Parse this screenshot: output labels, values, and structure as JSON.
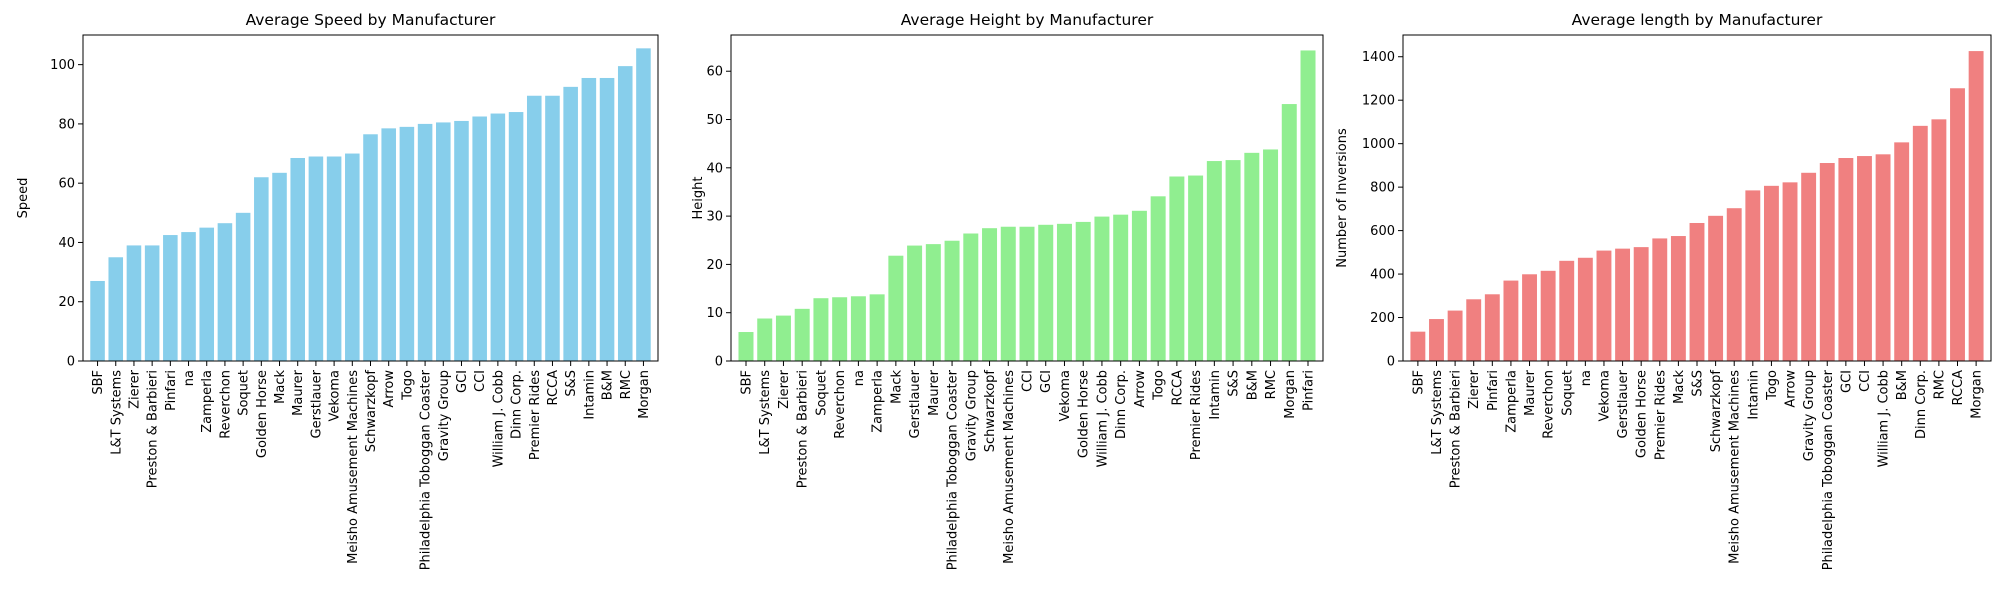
{
  "chart_data": [
    {
      "type": "bar",
      "title": "Average Speed by Manufacturer",
      "xlabel": "",
      "ylabel": "Speed",
      "ylim": [
        0,
        110
      ],
      "yticks": [
        0,
        20,
        40,
        60,
        80,
        100
      ],
      "grid": false,
      "color": "#87ceeb",
      "categories": [
        "SBF",
        "L&T Systems",
        "Zierer",
        "Preston & Barbieri",
        "Pinfari",
        "na",
        "Zamperla",
        "Reverchon",
        "Soquet",
        "Golden Horse",
        "Mack",
        "Maurer",
        "Gerstlauer",
        "Vekoma",
        "Meisho Amusement Machines",
        "Schwarzkopf",
        "Arrow",
        "Togo",
        "Philadelphia Toboggan Coaster",
        "Gravity Group",
        "GCI",
        "CCI",
        "William J. Cobb",
        "Dinn Corp.",
        "Premier Rides",
        "RCCA",
        "S&S",
        "Intamin",
        "B&M",
        "RMC",
        "Morgan"
      ],
      "values": [
        27,
        35,
        39,
        39,
        42.5,
        43.5,
        45,
        46.5,
        50,
        62,
        63.5,
        68.5,
        69,
        69,
        70,
        76.5,
        78.5,
        79,
        80,
        80.5,
        81,
        82.5,
        83.5,
        84,
        89.5,
        89.5,
        92.5,
        95.5,
        95.5,
        99.5,
        105.5
      ]
    },
    {
      "type": "bar",
      "title": "Average Height by Manufacturer",
      "xlabel": "",
      "ylabel": "Height",
      "ylim": [
        0,
        67.5
      ],
      "yticks": [
        0,
        10,
        20,
        30,
        40,
        50,
        60
      ],
      "grid": false,
      "color": "#90ee90",
      "categories": [
        "SBF",
        "L&T Systems",
        "Zierer",
        "Preston & Barbieri",
        "Soquet",
        "Reverchon",
        "na",
        "Zamperla",
        "Mack",
        "Gerstlauer",
        "Maurer",
        "Philadelphia Toboggan Coaster",
        "Gravity Group",
        "Schwarzkopf",
        "Meisho Amusement Machines",
        "CCI",
        "GCI",
        "Vekoma",
        "Golden Horse",
        "William J. Cobb",
        "Dinn Corp.",
        "Arrow",
        "Togo",
        "RCCA",
        "Premier Rides",
        "Intamin",
        "S&S",
        "B&M",
        "RMC",
        "Morgan",
        "Pinfari"
      ],
      "values": [
        6,
        8.8,
        9.4,
        10.8,
        13,
        13.2,
        13.4,
        13.8,
        21.8,
        23.9,
        24.2,
        24.9,
        26.4,
        27.5,
        27.8,
        27.8,
        28.2,
        28.4,
        28.8,
        29.9,
        30.3,
        31.1,
        34.1,
        38.2,
        38.4,
        41.4,
        41.6,
        43.1,
        43.8,
        53.2,
        64.3
      ]
    },
    {
      "type": "bar",
      "title": "Average length by Manufacturer",
      "xlabel": "",
      "ylabel": "Number of Inversions",
      "ylim": [
        0,
        1500
      ],
      "yticks": [
        0,
        200,
        400,
        600,
        800,
        1000,
        1200,
        1400
      ],
      "grid": false,
      "color": "#f08080",
      "categories": [
        "SBF",
        "L&T Systems",
        "Preston & Barbieri",
        "Zierer",
        "Pinfari",
        "Zamperla",
        "Maurer",
        "Reverchon",
        "Soquet",
        "na",
        "Vekoma",
        "Gerstlauer",
        "Golden Horse",
        "Premier Rides",
        "Mack",
        "S&S",
        "Schwarzkopf",
        "Meisho Amusement Machines",
        "Intamin",
        "Togo",
        "Arrow",
        "Gravity Group",
        "Philadelphia Toboggan Coaster",
        "GCI",
        "CCI",
        "William J. Cobb",
        "B&M",
        "Dinn Corp.",
        "RMC",
        "RCCA",
        "Morgan"
      ],
      "values": [
        135,
        193,
        232,
        284,
        307,
        370,
        399,
        415,
        461,
        475,
        508,
        517,
        524,
        564,
        575,
        635,
        668,
        703,
        785,
        806,
        822,
        866,
        911,
        934,
        943,
        951,
        1006,
        1082,
        1112,
        1255,
        1426
      ]
    }
  ]
}
